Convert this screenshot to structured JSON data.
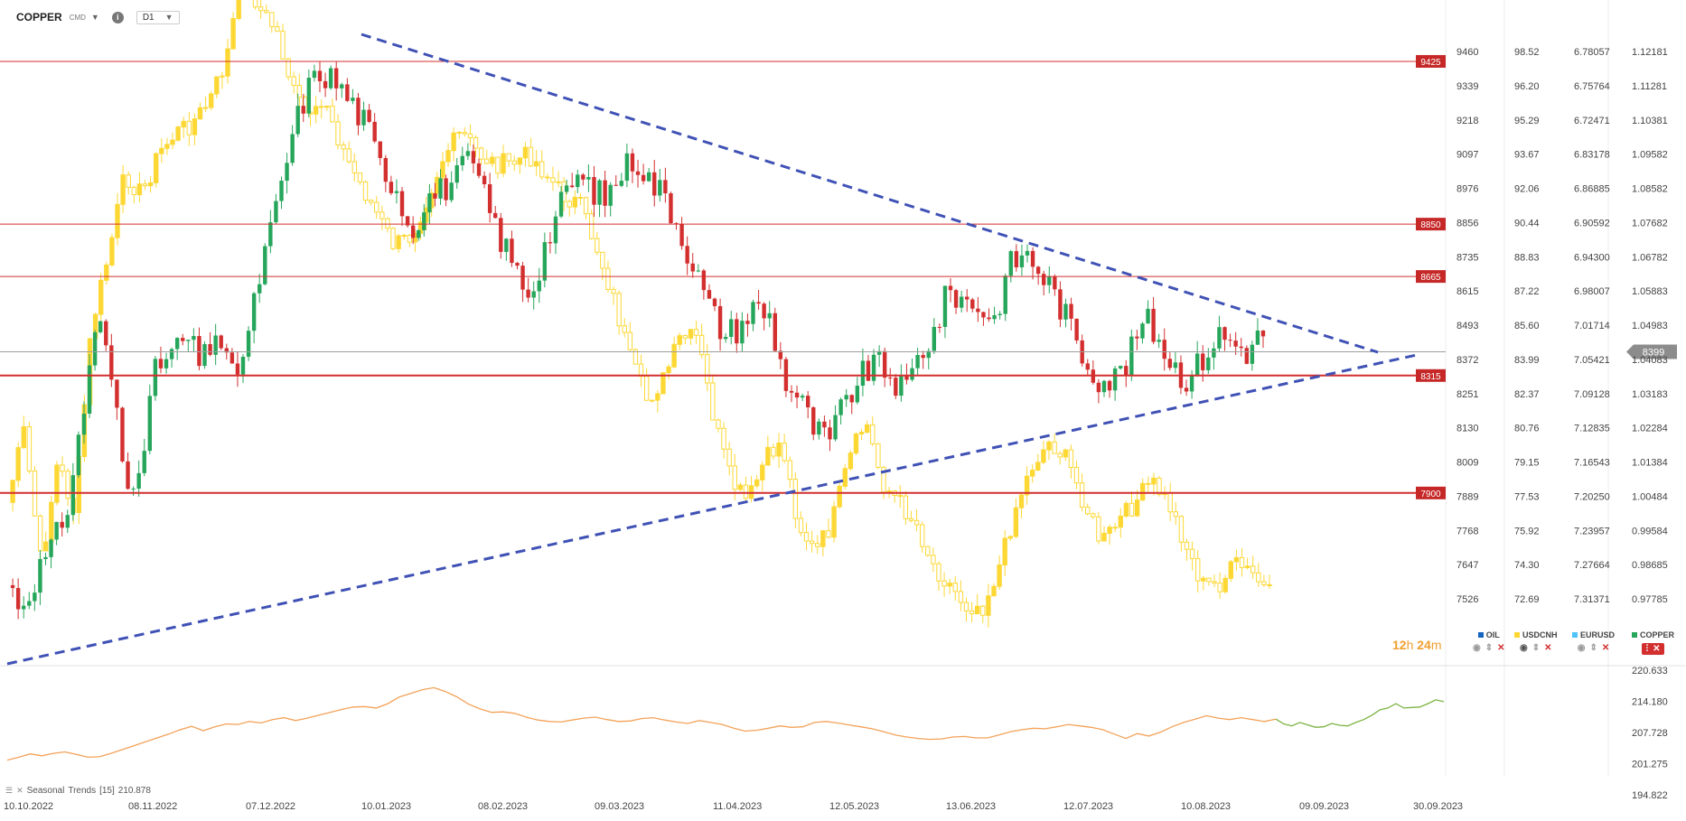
{
  "toolbar": {
    "symbol": "COPPER",
    "symbol_sub": "CMD",
    "timeframe": "D1",
    "info_icon": "info-icon",
    "caret_icon": "chevron-down-icon"
  },
  "countdown": {
    "hours": "12",
    "h_unit": "h",
    "minutes": "24",
    "m_unit": "m"
  },
  "legend": [
    {
      "name": "OIL",
      "color": "#1565c0",
      "active": false
    },
    {
      "name": "USDCNH",
      "color": "#fdd835",
      "active": false
    },
    {
      "name": "EURUSD",
      "color": "#4fc3f7",
      "active": false
    },
    {
      "name": "COPPER",
      "color": "#26a65b",
      "active": true
    }
  ],
  "seasonal": {
    "label": "Seasonal",
    "label2": "Trends",
    "period": "[15]",
    "value": "210.878"
  },
  "chart_data": [
    {
      "type": "candlestick",
      "series": [
        {
          "name": "COPPER",
          "color_up": "#26a65b",
          "color_down": "#d32f2f"
        },
        {
          "name": "USDCNH",
          "color": "#fdd835"
        }
      ],
      "x_labels": [
        "10.10.2022",
        "08.11.2022",
        "07.12.2022",
        "10.01.2023",
        "08.02.2023",
        "09.03.2023",
        "11.04.2023",
        "12.05.2023",
        "13.06.2023",
        "12.07.2023",
        "10.08.2023",
        "09.09.2023",
        "30.09.2023"
      ],
      "copper_close_path": [
        7580,
        7500,
        7620,
        7700,
        7850,
        8150,
        8540,
        8300,
        7900,
        8050,
        8350,
        8390,
        8450,
        8350,
        8480,
        8300,
        8420,
        8700,
        8900,
        9150,
        9320,
        9390,
        9350,
        9280,
        9200,
        9050,
        8990,
        8820,
        8940,
        8970,
        9010,
        9080,
        8930,
        8800,
        8690,
        8600,
        8780,
        8910,
        9020,
        8980,
        8940,
        9030,
        9090,
        9000,
        8950,
        8830,
        8690,
        8550,
        8460,
        8490,
        8560,
        8520,
        8300,
        8230,
        8120,
        8080,
        8220,
        8300,
        8360,
        8320,
        8250,
        8390,
        8470,
        8620,
        8580,
        8560,
        8510,
        8700,
        8750,
        8690,
        8610,
        8500,
        8380,
        8310,
        8300,
        8370,
        8520,
        8450,
        8350,
        8300,
        8380,
        8460,
        8430,
        8400,
        8470
      ],
      "usdcnh_close_path": [
        7.22,
        7.15,
        7.28,
        7.18,
        7.23,
        7.05,
        6.98,
        6.9,
        6.92,
        6.88,
        6.86,
        6.85,
        6.83,
        6.79,
        6.7,
        6.74,
        6.76,
        6.82,
        6.85,
        6.83,
        6.88,
        6.91,
        6.94,
        6.97,
        6.96,
        6.92,
        6.88,
        6.86,
        6.88,
        6.89,
        6.89,
        6.88,
        6.9,
        6.92,
        6.93,
        6.97,
        7.02,
        7.08,
        7.12,
        7.1,
        7.06,
        7.06,
        7.14,
        7.2,
        7.22,
        7.18,
        7.16,
        7.24,
        7.27,
        7.24,
        7.18,
        7.14,
        7.2,
        7.22,
        7.24,
        7.28,
        7.3,
        7.32,
        7.32,
        7.28,
        7.22,
        7.18,
        7.16,
        7.18,
        7.22,
        7.26,
        7.24,
        7.22,
        7.2,
        7.22,
        7.26,
        7.3,
        7.3,
        7.28,
        7.29,
        7.31
      ],
      "horizontal_levels": [
        {
          "value": 9425,
          "label": "9425"
        },
        {
          "value": 8850,
          "label": "8850"
        },
        {
          "value": 8665,
          "label": "8665"
        },
        {
          "value": 8315,
          "label": "8315"
        },
        {
          "value": 7900,
          "label": "7900"
        }
      ],
      "current_price": {
        "value": 8399,
        "label": "8399"
      },
      "trendlines": [
        {
          "style": "dashed",
          "from": {
            "x": "10.01.2023",
            "y": 9415
          },
          "to": {
            "x": "09.09.2023",
            "y": 8399
          }
        },
        {
          "style": "dashed",
          "from": {
            "x": "10.10.2022",
            "y": 7220
          },
          "to": {
            "x": "30.09.2023",
            "y": 8390
          }
        }
      ],
      "y_axes": [
        {
          "name": "COPPER",
          "ticks": [
            "9460",
            "9339",
            "9218",
            "9097",
            "8976",
            "8856",
            "8735",
            "8615",
            "8493",
            "8372",
            "8251",
            "8130",
            "8009",
            "7889",
            "7768",
            "7647",
            "7526"
          ]
        },
        {
          "name": "OIL",
          "ticks": [
            "98.52",
            "96.20",
            "95.29",
            "93.67",
            "92.06",
            "90.44",
            "88.83",
            "87.22",
            "85.60",
            "83.99",
            "82.37",
            "80.76",
            "79.15",
            "77.53",
            "75.92",
            "74.30",
            "72.69"
          ]
        },
        {
          "name": "USDCNH",
          "ticks": [
            "6.78057",
            "6.75764",
            "6.72471",
            "6.83178",
            "6.86885",
            "6.90592",
            "6.94300",
            "6.98007",
            "7.01714",
            "7.05421",
            "7.09128",
            "7.12835",
            "7.16543",
            "7.20250",
            "7.23957",
            "7.27664",
            "7.31371"
          ]
        },
        {
          "name": "EURUSD",
          "ticks": [
            "1.12181",
            "1.11281",
            "1.10381",
            "1.09582",
            "1.08582",
            "1.07682",
            "1.06782",
            "1.05883",
            "1.04983",
            "1.04083",
            "1.03183",
            "1.02284",
            "1.01384",
            "1.00484",
            "0.99584",
            "0.98685",
            "0.97785"
          ]
        }
      ]
    },
    {
      "type": "line",
      "series": [
        {
          "name": "Seasonal Trends",
          "color": "#f4a259",
          "values": [
            202.0,
            202.6,
            203.3,
            202.9,
            203.4,
            203.7,
            203.2,
            202.6,
            202.7,
            203.4,
            204.2,
            205.0,
            205.8,
            206.6,
            207.4,
            208.3,
            209.0,
            208.1,
            208.9,
            209.5,
            209.4,
            210.0,
            209.7,
            210.4,
            210.8,
            210.2,
            210.7,
            211.3,
            211.9,
            212.5,
            213.0,
            213.1,
            212.8,
            213.7,
            215.1,
            215.8,
            216.6,
            217.0,
            216.2,
            215.1,
            213.6,
            212.6,
            211.9,
            212.0,
            211.7,
            210.9,
            210.3,
            210.0,
            209.9,
            210.3,
            210.7,
            210.9,
            210.4,
            210.0,
            210.1,
            210.6,
            210.8,
            210.3,
            209.9,
            209.6,
            210.2,
            209.8,
            209.4,
            208.6,
            208.0,
            208.2,
            208.6,
            209.1,
            208.8,
            208.9,
            209.8,
            210.0,
            209.7,
            209.3,
            208.9,
            208.5,
            207.9,
            207.2,
            206.8,
            206.5,
            206.3,
            206.4,
            206.8,
            206.9,
            206.6,
            206.6,
            207.2,
            207.9,
            208.3,
            208.6,
            208.5,
            208.9,
            209.4,
            209.1,
            208.8,
            208.3,
            207.4,
            206.5,
            207.5,
            207.0,
            207.8,
            208.9,
            209.8,
            210.5,
            211.2,
            210.7,
            210.4,
            210.8,
            210.4,
            210.0,
            210.5
          ]
        },
        {
          "name": "Seasonal Trends projection",
          "color": "#7cb342",
          "values": [
            210.5,
            209.5,
            209.1,
            209.8,
            209.3,
            208.8,
            208.9,
            209.6,
            209.2,
            209.1,
            209.8,
            210.4,
            211.3,
            212.4,
            212.8,
            213.7,
            212.8,
            212.9,
            213.0,
            213.7,
            214.5,
            214.1
          ]
        }
      ],
      "y_ticks": [
        "220.633",
        "214.180",
        "207.728",
        "201.275",
        "194.822"
      ],
      "ylim": [
        194.822,
        220.633
      ]
    }
  ]
}
